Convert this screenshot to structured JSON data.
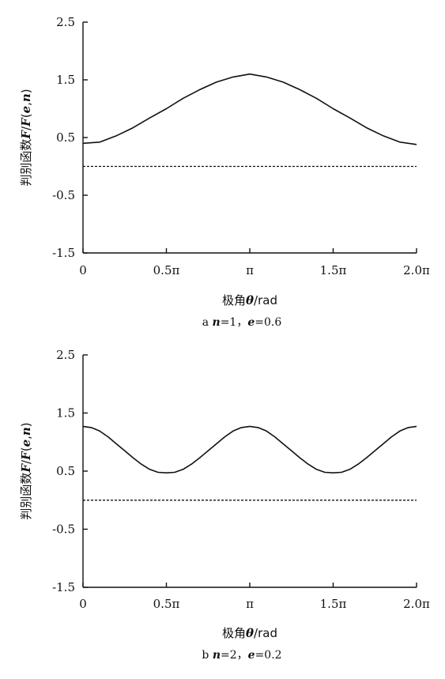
{
  "chart_data": [
    {
      "type": "line",
      "ylabel_parts": [
        "判别函数",
        "F",
        "/",
        "F",
        "(",
        "e",
        ",",
        "n",
        ")"
      ],
      "xlabel_parts": [
        "极角",
        "θ",
        "/rad"
      ],
      "caption_parts": [
        "a ",
        "n",
        "=1，",
        "e",
        "=0.6"
      ],
      "x_ticks": [
        "0",
        "0.5π",
        "π",
        "1.5π",
        "2.0π"
      ],
      "y_ticks": [
        "2.5",
        "1.5",
        "0.5",
        "-0.5",
        "-1.5"
      ],
      "x_range": [
        0,
        2
      ],
      "ylim": [
        -1.5,
        2.5
      ],
      "x_unit": "π rad",
      "series": [
        {
          "style": "solid",
          "x": [
            0,
            0.1,
            0.2,
            0.3,
            0.4,
            0.5,
            0.6,
            0.7,
            0.8,
            0.9,
            1.0,
            1.1,
            1.2,
            1.3,
            1.4,
            1.5,
            1.6,
            1.7,
            1.8,
            1.9,
            2.0
          ],
          "y": [
            0.4,
            0.42,
            0.53,
            0.67,
            0.84,
            1.0,
            1.18,
            1.33,
            1.46,
            1.55,
            1.6,
            1.55,
            1.46,
            1.33,
            1.18,
            1.0,
            0.84,
            0.67,
            0.53,
            0.42,
            0.38
          ]
        },
        {
          "style": "dashed",
          "x": [
            0,
            2
          ],
          "y": [
            0,
            0
          ]
        }
      ]
    },
    {
      "type": "line",
      "ylabel_parts": [
        "判别函数",
        "F",
        "/",
        "F",
        "(",
        "e",
        ",",
        "n",
        ")"
      ],
      "xlabel_parts": [
        "极角",
        "θ",
        "/rad"
      ],
      "caption_parts": [
        "b ",
        "n",
        "=2，",
        "e",
        "=0.2"
      ],
      "x_ticks": [
        "0",
        "0.5π",
        "π",
        "1.5π",
        "2.0π"
      ],
      "y_ticks": [
        "2.5",
        "1.5",
        "0.5",
        "-0.5",
        "-1.5"
      ],
      "x_range": [
        0,
        2
      ],
      "ylim": [
        -1.5,
        2.5
      ],
      "x_unit": "π rad",
      "series": [
        {
          "style": "solid",
          "x": [
            0,
            0.05,
            0.1,
            0.15,
            0.2,
            0.25,
            0.3,
            0.35,
            0.4,
            0.45,
            0.5,
            0.55,
            0.6,
            0.65,
            0.7,
            0.75,
            0.8,
            0.85,
            0.9,
            0.95,
            1.0,
            1.05,
            1.1,
            1.15,
            1.2,
            1.25,
            1.3,
            1.35,
            1.4,
            1.45,
            1.5,
            1.55,
            1.6,
            1.65,
            1.7,
            1.75,
            1.8,
            1.85,
            1.9,
            1.95,
            2.0
          ],
          "y": [
            1.27,
            1.25,
            1.19,
            1.09,
            0.97,
            0.85,
            0.73,
            0.62,
            0.53,
            0.48,
            0.47,
            0.48,
            0.53,
            0.62,
            0.73,
            0.85,
            0.97,
            1.09,
            1.19,
            1.25,
            1.27,
            1.25,
            1.19,
            1.09,
            0.97,
            0.85,
            0.73,
            0.62,
            0.53,
            0.48,
            0.47,
            0.48,
            0.53,
            0.62,
            0.73,
            0.85,
            0.97,
            1.09,
            1.19,
            1.25,
            1.27
          ]
        },
        {
          "style": "dashed",
          "x": [
            0,
            2
          ],
          "y": [
            0,
            0
          ]
        }
      ]
    }
  ]
}
